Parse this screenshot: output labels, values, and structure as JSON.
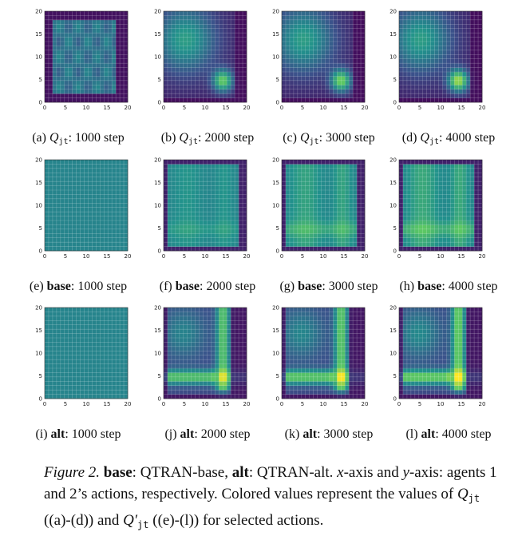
{
  "colormap": [
    "#440154",
    "#3b528b",
    "#21918c",
    "#5ec962",
    "#fde725"
  ],
  "axis_ticks": [
    "0",
    "5",
    "10",
    "15",
    "20"
  ],
  "rows": [
    {
      "panels": [
        {
          "label": "(a)",
          "var_base": "Q",
          "var_sub": "jt",
          "sep": ":",
          "step": "1000 step",
          "pattern": "blocky",
          "amp": 0.0
        },
        {
          "label": "(b)",
          "var_base": "Q",
          "var_sub": "jt",
          "sep": ":",
          "step": "2000 step",
          "pattern": "peaks",
          "amp": 0.85
        },
        {
          "label": "(c)",
          "var_base": "Q",
          "var_sub": "jt",
          "sep": ":",
          "step": "3000 step",
          "pattern": "peaks",
          "amp": 0.9
        },
        {
          "label": "(d)",
          "var_base": "Q",
          "var_sub": "jt",
          "sep": ":",
          "step": "4000 step",
          "pattern": "peaks",
          "amp": 1.0
        }
      ]
    },
    {
      "panels": [
        {
          "label": "(e)",
          "bold": "base",
          "sep": ":",
          "step": "1000 step",
          "pattern": "flat",
          "amp": 0.0
        },
        {
          "label": "(f)",
          "bold": "base",
          "sep": ":",
          "step": "2000 step",
          "pattern": "stripes",
          "amp": 0.35
        },
        {
          "label": "(g)",
          "bold": "base",
          "sep": ":",
          "step": "3000 step",
          "pattern": "stripes",
          "amp": 0.7
        },
        {
          "label": "(h)",
          "bold": "base",
          "sep": ":",
          "step": "4000 step",
          "pattern": "stripes",
          "amp": 0.85
        }
      ]
    },
    {
      "panels": [
        {
          "label": "(i)",
          "bold": "alt",
          "sep": ":",
          "step": "1000 step",
          "pattern": "flat",
          "amp": 0.0
        },
        {
          "label": "(j)",
          "bold": "alt",
          "sep": ":",
          "step": "2000 step",
          "pattern": "cross",
          "amp": 0.9
        },
        {
          "label": "(k)",
          "bold": "alt",
          "sep": ":",
          "step": "3000 step",
          "pattern": "cross",
          "amp": 0.95
        },
        {
          "label": "(l)",
          "bold": "alt",
          "sep": ":",
          "step": "4000 step",
          "pattern": "cross",
          "amp": 1.0
        }
      ]
    }
  ],
  "figure_caption": {
    "fig_label": "Figure 2.",
    "base_term": "base",
    "base_desc": ": QTRAN-base,",
    "alt_term": "alt",
    "alt_desc": ": QTRAN-alt.",
    "x_var": "x",
    "axis_mid": "-axis and",
    "y_var": "y",
    "axis_tail": "-axis: agents 1 and 2’s actions, respectively. Colored values represent the values of",
    "q_base": "Q",
    "q_sub": "jt",
    "range1": "((a)-(d)) and",
    "q2_base": "Q′",
    "q2_sub": "jt",
    "range2": "((e)-(l)) for selected actions."
  }
}
